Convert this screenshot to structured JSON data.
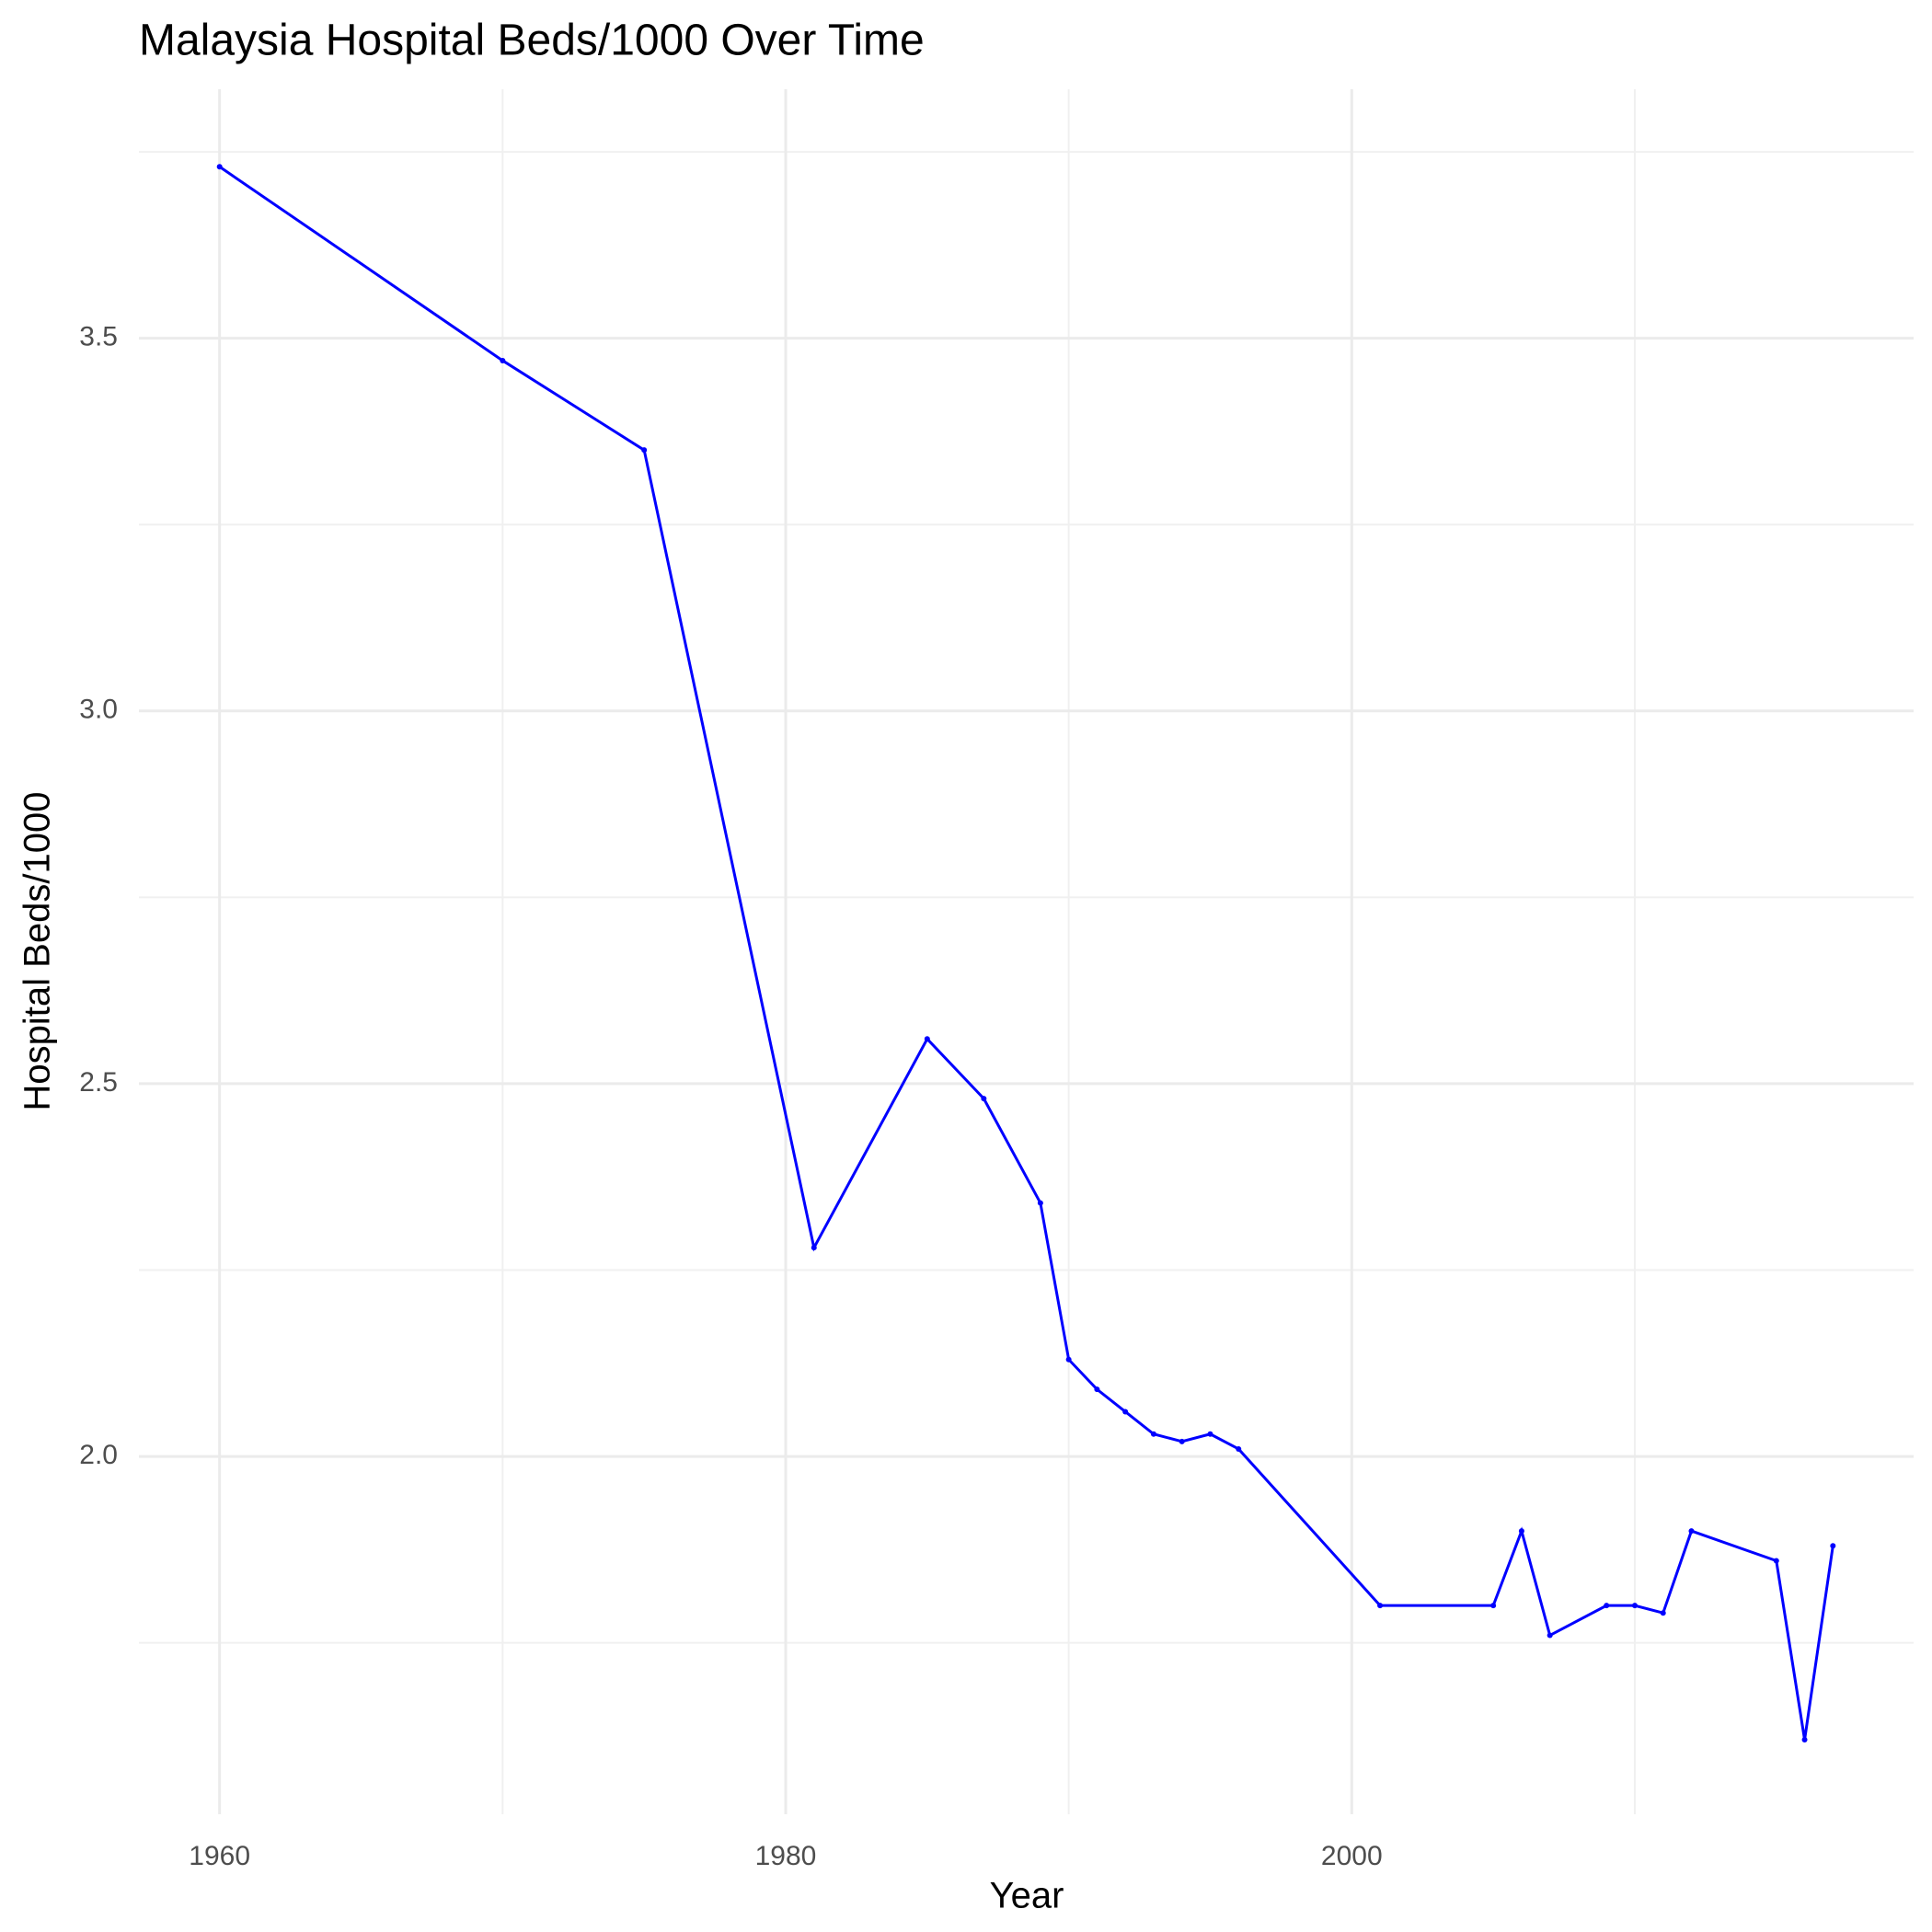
{
  "chart_data": {
    "type": "line",
    "title": "Malaysia Hospital Beds/1000 Over Time",
    "x_label": "Year",
    "y_label": "Hospital Beds/1000",
    "x": [
      1960,
      1970,
      1975,
      1981,
      1985,
      1987,
      1989,
      1990,
      1991,
      1992,
      1993,
      1994,
      1995,
      1996,
      2001,
      2005,
      2006,
      2007,
      2009,
      2010,
      2011,
      2012,
      2015,
      2016,
      2017
    ],
    "series": [
      {
        "name": "Hospital Beds/1000",
        "color": "#0000ff",
        "values": [
          3.73,
          3.47,
          3.35,
          2.28,
          2.56,
          2.48,
          2.34,
          2.13,
          2.09,
          2.06,
          2.03,
          2.02,
          2.03,
          2.01,
          1.8,
          1.8,
          1.9,
          1.76,
          1.8,
          1.8,
          1.79,
          1.9,
          1.86,
          1.62,
          1.88
        ]
      }
    ],
    "xlim": [
      1957.15,
      2019.85
    ],
    "ylim": [
      1.52,
      3.834
    ],
    "xticks": [
      1960,
      1980,
      2000
    ],
    "yticks": [
      {
        "value": 2.0,
        "label": "2.0"
      },
      {
        "value": 2.5,
        "label": "2.5"
      },
      {
        "value": 3.0,
        "label": "3.0"
      },
      {
        "value": 3.5,
        "label": "3.5"
      }
    ],
    "x_minor_ticks": [
      1970,
      1990,
      2010
    ],
    "y_minor_ticks": [
      1.75,
      2.25,
      2.75,
      3.25,
      3.75
    ],
    "grid": true
  }
}
